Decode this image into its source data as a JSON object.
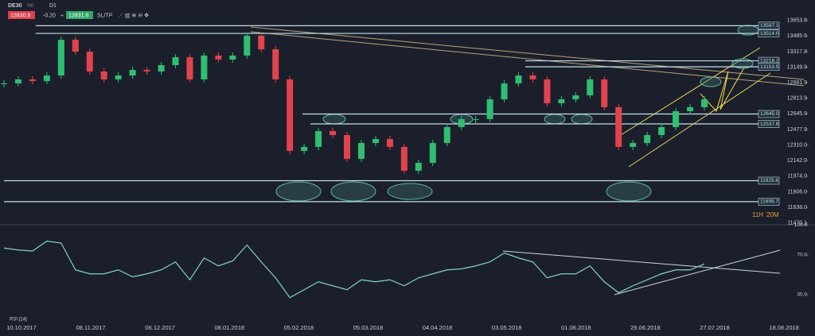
{
  "toolbar": {
    "symbol": "DE30",
    "mode": "IND",
    "timeframe": "D1",
    "bid": "12830.9",
    "change": "-0.20",
    "ask": "12831.8",
    "sltp": "SL/TP"
  },
  "countdown": {
    "hours": "11H",
    "minutes": "20M"
  },
  "chart_data": [
    {
      "type": "candlestick",
      "name": "DE30",
      "values": [
        12975,
        13018,
        13000,
        13060,
        13446,
        13317,
        13103,
        13018,
        13060,
        13120,
        13103,
        13172,
        13257,
        13018,
        13275,
        13232,
        13275,
        13489,
        13343,
        13018,
        12247,
        12290,
        12461,
        12418,
        12161,
        12332,
        12375,
        12290,
        12033,
        12118,
        12332,
        12504,
        12590,
        12590,
        12803,
        12975,
        13060,
        13018,
        12761,
        12803,
        12846,
        13018,
        12718,
        12290,
        12332,
        12418,
        12504,
        12675,
        12718,
        12803
      ],
      "up_color": "#2fbf71",
      "down_color": "#e2434e",
      "ylim": [
        11450,
        13720
      ],
      "yticks": [
        13653.8,
        13485.6,
        13317.8,
        13149.9,
        12981.9,
        12813.9,
        12645.9,
        12477.9,
        {
          "value": 12310,
          "label": "12310.0"
        },
        {
          "value": 12142,
          "label": "12142.0"
        },
        {
          "value": 11974,
          "label": "11974.0"
        },
        {
          "value": 11806,
          "label": "11806.0"
        },
        {
          "value": 11638,
          "label": "11638.0"
        },
        11470.1
      ],
      "levels": [
        13597.1,
        {
          "value": 13514,
          "label": "13514.0"
        },
        13218.2,
        13153.5,
        {
          "value": 12645,
          "label": "12645.0"
        },
        12537.6,
        11925.6,
        11699.7
      ]
    },
    {
      "type": "line",
      "series": [
        {
          "name": "RSI [14]",
          "color": "#7fd6c9",
          "values": [
            77,
            75,
            74,
            84,
            82,
            55,
            51,
            51,
            55,
            48,
            51,
            55,
            63,
            45,
            67,
            59,
            64,
            80,
            63,
            47,
            27,
            35,
            43,
            39,
            35,
            45,
            43,
            45,
            39,
            47,
            51,
            55,
            56,
            59,
            63,
            72,
            67,
            63,
            47,
            51,
            51,
            59,
            43,
            32,
            39,
            45,
            51,
            55,
            55,
            61
          ]
        }
      ],
      "ylim": [
        0,
        100
      ],
      "yticks": [
        {
          "value": 100,
          "label": "100.0"
        },
        {
          "value": 70,
          "label": "70.0"
        },
        {
          "value": 30,
          "label": "30.0"
        }
      ],
      "xticks": [
        "10.10.2017",
        "08.11.2017",
        "06.12.2017",
        "08.01.2018",
        "05.02.2018",
        "05.03.2018",
        "04.04.2018",
        "03.05.2018",
        "01.06.2018",
        "29.06.2018",
        "27.07.2018",
        "18.08.2018"
      ]
    }
  ]
}
